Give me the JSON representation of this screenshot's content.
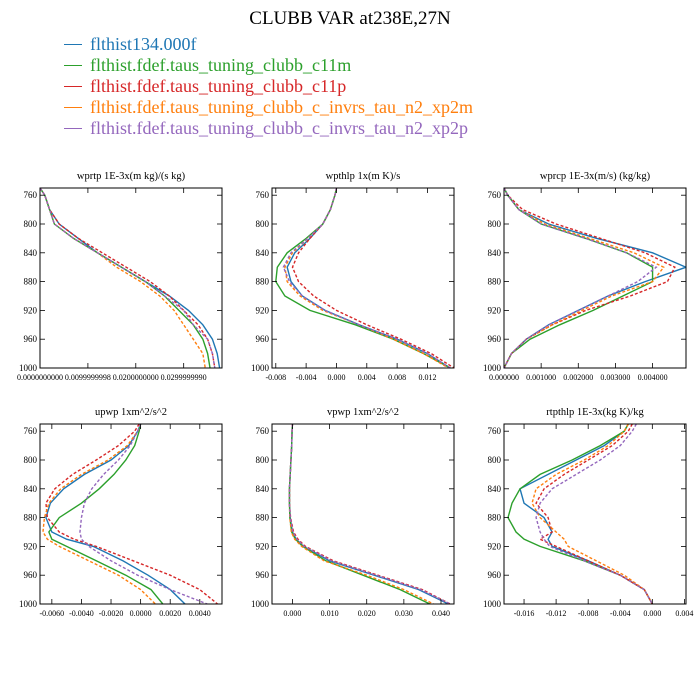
{
  "title": "CLUBB VAR at238E,27N",
  "colors": [
    "#1f77b4",
    "#2ca02c",
    "#d62728",
    "#ff7f0e",
    "#9467bd"
  ],
  "legend": [
    {
      "label": "flthist134.000f",
      "color": "#1f77b4",
      "dash": false
    },
    {
      "label": "flthist.fdef.taus_tuning_clubb_c11m",
      "color": "#2ca02c",
      "dash": false
    },
    {
      "label": "flthist.fdef.taus_tuning_clubb_c11p",
      "color": "#d62728",
      "dash": true
    },
    {
      "label": "flthist.fdef.taus_tuning_clubb_c_invrs_tau_n2_xp2m",
      "color": "#ff7f0e",
      "dash": true
    },
    {
      "label": "flthist.fdef.taus_tuning_clubb_c_invrs_tau_n2_xp2p",
      "color": "#9467bd",
      "dash": true
    }
  ],
  "chart_data": [
    {
      "type": "line",
      "title": "wprtp  1E-3x(m kg)/(s kg)",
      "xlim": [
        0.0,
        0.038
      ],
      "ylim": [
        1000,
        750
      ],
      "yticks": [
        760,
        800,
        840,
        880,
        920,
        960,
        1000
      ],
      "xticks": [
        0.0,
        0.01,
        0.02,
        0.03
      ],
      "xticklabels": [
        "0.0000000000",
        "0.0099999998",
        "0.0200000000",
        "0.0299999990"
      ],
      "y": [
        750,
        760,
        780,
        800,
        820,
        840,
        860,
        880,
        900,
        920,
        940,
        960,
        980,
        1000
      ],
      "series": [
        {
          "values": [
            0.0,
            0.001,
            0.002,
            0.004,
            0.008,
            0.012,
            0.017,
            0.022,
            0.027,
            0.031,
            0.034,
            0.036,
            0.037,
            0.0375
          ]
        },
        {
          "values": [
            0.0,
            0.001,
            0.002,
            0.003,
            0.007,
            0.012,
            0.017,
            0.022,
            0.026,
            0.029,
            0.032,
            0.034,
            0.035,
            0.0355
          ]
        },
        {
          "values": [
            0.0,
            0.001,
            0.002,
            0.004,
            0.008,
            0.013,
            0.018,
            0.023,
            0.027,
            0.03,
            0.033,
            0.035,
            0.036,
            0.0365
          ]
        },
        {
          "values": [
            0.0,
            0.001,
            0.002,
            0.003,
            0.007,
            0.012,
            0.016,
            0.021,
            0.025,
            0.028,
            0.03,
            0.032,
            0.034,
            0.0345
          ]
        },
        {
          "values": [
            0.0,
            0.001,
            0.002,
            0.003,
            0.007,
            0.012,
            0.017,
            0.022,
            0.026,
            0.03,
            0.032,
            0.035,
            0.036,
            0.0365
          ]
        }
      ]
    },
    {
      "type": "line",
      "title": "wpthlp  1x(m K)/s",
      "xlim": [
        -0.0085,
        0.0155
      ],
      "ylim": [
        1000,
        750
      ],
      "yticks": [
        760,
        800,
        840,
        880,
        920,
        960,
        1000
      ],
      "xticks": [
        -0.008,
        -0.004,
        0.0,
        0.004,
        0.008,
        0.012
      ],
      "xticklabels": [
        "-0.008",
        "-0.004",
        "0.000",
        "0.004",
        "0.008",
        "0.012"
      ],
      "y": [
        750,
        760,
        780,
        800,
        820,
        840,
        860,
        880,
        900,
        920,
        940,
        960,
        980,
        1000
      ],
      "series": [
        {
          "values": [
            0.0,
            -0.0002,
            -0.0008,
            -0.0018,
            -0.0035,
            -0.0055,
            -0.0065,
            -0.006,
            -0.0045,
            -0.0015,
            0.003,
            0.008,
            0.012,
            0.015
          ]
        },
        {
          "values": [
            0.0,
            -0.0002,
            -0.0008,
            -0.0018,
            -0.004,
            -0.0065,
            -0.0078,
            -0.008,
            -0.0068,
            -0.0035,
            0.0025,
            0.0075,
            0.0115,
            0.015
          ]
        },
        {
          "values": [
            0.0,
            -0.0002,
            -0.0008,
            -0.0018,
            -0.0035,
            -0.005,
            -0.0058,
            -0.005,
            -0.003,
            0.0,
            0.004,
            0.0085,
            0.0125,
            0.0155
          ]
        },
        {
          "values": [
            0.0,
            -0.0002,
            -0.0008,
            -0.0018,
            -0.0038,
            -0.0058,
            -0.0068,
            -0.0065,
            -0.0048,
            -0.0018,
            0.003,
            0.0075,
            0.0115,
            0.0148
          ]
        },
        {
          "values": [
            0.0,
            -0.0002,
            -0.0008,
            -0.0018,
            -0.0038,
            -0.006,
            -0.007,
            -0.0062,
            -0.0045,
            -0.0015,
            0.003,
            0.008,
            0.012,
            0.015
          ]
        }
      ]
    },
    {
      "type": "line",
      "title": "wprcp  1E-3x(m/s) (kg/kg)",
      "xlim": [
        0.0,
        0.0049
      ],
      "ylim": [
        1000,
        750
      ],
      "yticks": [
        760,
        800,
        840,
        880,
        920,
        960,
        1000
      ],
      "xticks": [
        0.0,
        0.001,
        0.002,
        0.003,
        0.004
      ],
      "xticklabels": [
        "0.000000",
        "0.001000",
        "0.002000",
        "0.003000",
        "0.004000"
      ],
      "y": [
        750,
        760,
        780,
        800,
        820,
        840,
        860,
        880,
        900,
        920,
        940,
        960,
        980,
        1000
      ],
      "series": [
        {
          "values": [
            0.0,
            0.0001,
            0.0004,
            0.0012,
            0.0025,
            0.004,
            0.0049,
            0.0038,
            0.0028,
            0.002,
            0.0012,
            0.0006,
            0.0002,
            0.0
          ]
        },
        {
          "values": [
            0.0,
            0.0001,
            0.0004,
            0.001,
            0.0022,
            0.0033,
            0.004,
            0.004,
            0.0032,
            0.0024,
            0.0015,
            0.0007,
            0.0002,
            0.0
          ]
        },
        {
          "values": [
            0.0,
            0.0001,
            0.0005,
            0.0014,
            0.0026,
            0.0038,
            0.0046,
            0.0044,
            0.0034,
            0.0022,
            0.0013,
            0.0006,
            0.0002,
            0.0
          ]
        },
        {
          "values": [
            0.0,
            0.0001,
            0.0004,
            0.0011,
            0.0023,
            0.0035,
            0.0043,
            0.004,
            0.0029,
            0.0021,
            0.0013,
            0.0006,
            0.0002,
            0.0
          ]
        },
        {
          "values": [
            0.0,
            0.0001,
            0.0004,
            0.001,
            0.0022,
            0.0033,
            0.0041,
            0.0036,
            0.0028,
            0.002,
            0.0012,
            0.0006,
            0.0002,
            0.0
          ]
        }
      ]
    },
    {
      "type": "line",
      "title": "upwp  1xm^2/s^2",
      "xlim": [
        -0.0068,
        0.0055
      ],
      "ylim": [
        1000,
        750
      ],
      "yticks": [
        760,
        800,
        840,
        880,
        920,
        960,
        1000
      ],
      "xticks": [
        -0.006,
        -0.004,
        -0.002,
        0.0,
        0.002,
        0.004
      ],
      "xticklabels": [
        "-0.0060",
        "-0.0040",
        "-0.0020",
        "0.0000",
        "0.0020",
        "0.0040"
      ],
      "y": [
        750,
        760,
        780,
        800,
        820,
        840,
        860,
        880,
        900,
        910,
        920,
        940,
        960,
        980,
        1000
      ],
      "series": [
        {
          "values": [
            0.0,
            -0.0002,
            -0.0008,
            -0.002,
            -0.0038,
            -0.0052,
            -0.0061,
            -0.0064,
            -0.006,
            -0.005,
            -0.0032,
            -0.0012,
            0.0005,
            0.002,
            0.003
          ]
        },
        {
          "values": [
            0.0,
            -0.0001,
            -0.0004,
            -0.001,
            -0.0018,
            -0.0028,
            -0.004,
            -0.0055,
            -0.0062,
            -0.006,
            -0.005,
            -0.003,
            -0.001,
            0.0007,
            0.0015
          ]
        },
        {
          "values": [
            -0.0001,
            -0.0004,
            -0.0015,
            -0.003,
            -0.0046,
            -0.0058,
            -0.0064,
            -0.0063,
            -0.0055,
            -0.0045,
            -0.003,
            -0.0005,
            0.002,
            0.004,
            0.0052
          ]
        },
        {
          "values": [
            0.0,
            -0.0002,
            -0.0009,
            -0.0022,
            -0.004,
            -0.0054,
            -0.0062,
            -0.0065,
            -0.0066,
            -0.0063,
            -0.0055,
            -0.0035,
            -0.0015,
            0.0,
            0.001
          ]
        },
        {
          "values": [
            0.0,
            -0.0002,
            -0.0007,
            -0.0015,
            -0.0025,
            -0.0033,
            -0.0038,
            -0.004,
            -0.0041,
            -0.004,
            -0.0035,
            -0.002,
            -0.0002,
            0.002,
            0.0045
          ]
        }
      ]
    },
    {
      "type": "line",
      "title": "vpwp  1xm^2/s^2",
      "xlim": [
        -0.0055,
        0.0435
      ],
      "ylim": [
        1000,
        750
      ],
      "yticks": [
        760,
        800,
        840,
        880,
        920,
        960,
        1000
      ],
      "xticks": [
        0.0,
        0.01,
        0.02,
        0.03,
        0.04
      ],
      "xticklabels": [
        "0.000",
        "0.010",
        "0.020",
        "0.030",
        "0.040"
      ],
      "y": [
        750,
        760,
        780,
        800,
        820,
        840,
        860,
        880,
        900,
        910,
        920,
        940,
        960,
        980,
        1000
      ],
      "series": [
        {
          "values": [
            0.0,
            -0.0001,
            -0.0002,
            -0.0004,
            -0.0006,
            -0.0008,
            -0.0008,
            -0.0006,
            0.0,
            0.001,
            0.003,
            0.01,
            0.022,
            0.034,
            0.042
          ]
        },
        {
          "values": [
            0.0,
            -0.0001,
            -0.0002,
            -0.0004,
            -0.0006,
            -0.0008,
            -0.0008,
            -0.0007,
            -0.0002,
            0.0008,
            0.0028,
            0.009,
            0.019,
            0.029,
            0.037
          ]
        },
        {
          "values": [
            0.0,
            -0.0001,
            -0.0002,
            -0.0004,
            -0.0006,
            -0.0008,
            -0.0008,
            -0.0005,
            0.0003,
            0.0015,
            0.0035,
            0.011,
            0.023,
            0.035,
            0.0425
          ]
        },
        {
          "values": [
            0.0,
            -0.0001,
            -0.0002,
            -0.0004,
            -0.0006,
            -0.0008,
            -0.0008,
            -0.0007,
            -0.0003,
            0.0006,
            0.0025,
            0.0085,
            0.02,
            0.03,
            0.038
          ]
        },
        {
          "values": [
            0.0,
            -0.0001,
            -0.0002,
            -0.0004,
            -0.0006,
            -0.0008,
            -0.0008,
            -0.0006,
            0.0001,
            0.0012,
            0.0032,
            0.0105,
            0.0225,
            0.0345,
            0.0425
          ]
        }
      ]
    },
    {
      "type": "line",
      "title": "rtpthlp  1E-3x(kg K)/kg",
      "xlim": [
        -0.0185,
        0.0042
      ],
      "ylim": [
        1000,
        750
      ],
      "yticks": [
        760,
        800,
        840,
        880,
        920,
        960,
        1000
      ],
      "xticks": [
        -0.016,
        -0.012,
        -0.008,
        -0.004,
        0.0,
        0.004
      ],
      "xticklabels": [
        "-0.016",
        "-0.012",
        "-0.008",
        "-0.004",
        "0.000",
        "0.004"
      ],
      "y": [
        750,
        760,
        780,
        800,
        820,
        840,
        860,
        880,
        900,
        910,
        920,
        940,
        960,
        980,
        1000
      ],
      "series": [
        {
          "values": [
            -0.003,
            -0.0035,
            -0.006,
            -0.0095,
            -0.013,
            -0.0165,
            -0.016,
            -0.0135,
            -0.0125,
            -0.013,
            -0.0125,
            -0.008,
            -0.004,
            -0.001,
            0.0
          ]
        },
        {
          "values": [
            -0.003,
            -0.0035,
            -0.0065,
            -0.01,
            -0.014,
            -0.0165,
            -0.0175,
            -0.018,
            -0.017,
            -0.016,
            -0.014,
            -0.0085,
            -0.004,
            -0.001,
            0.0
          ]
        },
        {
          "values": [
            -0.0025,
            -0.003,
            -0.005,
            -0.008,
            -0.011,
            -0.0135,
            -0.0145,
            -0.013,
            -0.0125,
            -0.014,
            -0.012,
            -0.008,
            -0.004,
            -0.001,
            0.0
          ]
        },
        {
          "values": [
            -0.003,
            -0.0035,
            -0.0055,
            -0.0085,
            -0.012,
            -0.0145,
            -0.015,
            -0.014,
            -0.012,
            -0.011,
            -0.0105,
            -0.007,
            -0.0035,
            -0.001,
            0.0
          ]
        },
        {
          "values": [
            -0.002,
            -0.0025,
            -0.004,
            -0.0065,
            -0.0095,
            -0.0125,
            -0.014,
            -0.0145,
            -0.014,
            -0.0135,
            -0.0128,
            -0.0085,
            -0.004,
            -0.001,
            0.0
          ]
        }
      ]
    }
  ]
}
